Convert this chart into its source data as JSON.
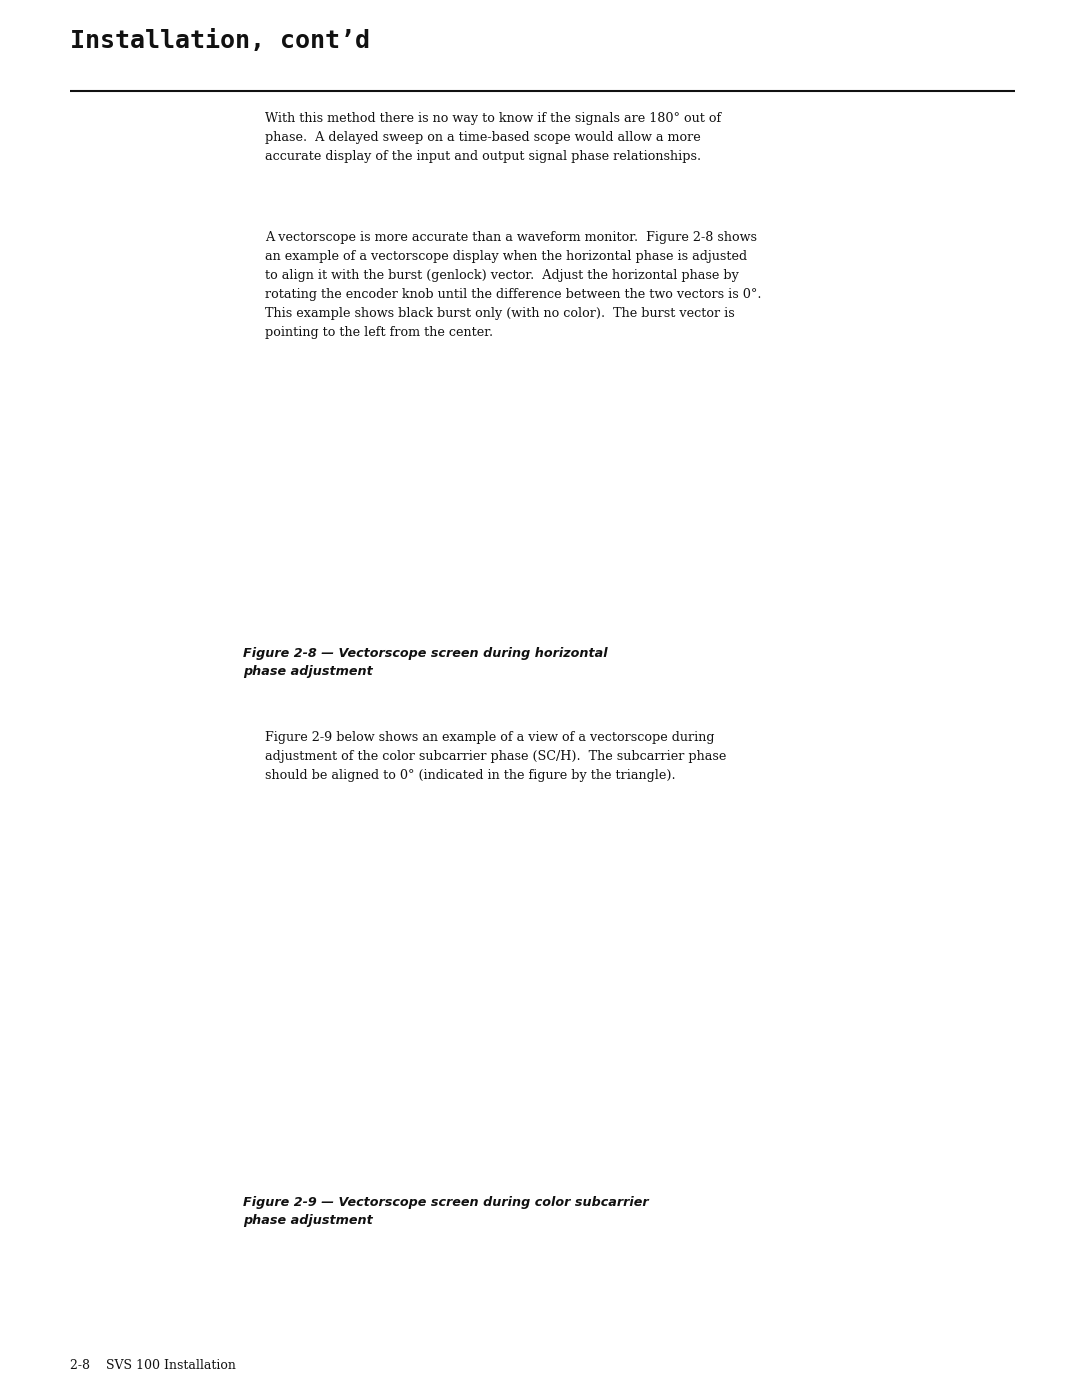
{
  "page_bg": "#ffffff",
  "page_width": 10.8,
  "page_height": 13.97,
  "header_title": "Installation, cont’d",
  "header_title_font": 18,
  "header_title_weight": "bold",
  "header_title_family": "monospace",
  "body_text_1": "With this method there is no way to know if the signals are 180° out of\nphase.  A delayed sweep on a time-based scope would allow a more\naccurate display of the input and output signal phase relationships.",
  "body_text_2": "A vectorscope is more accurate than a waveform monitor.  Figure 2-8 shows\nan example of a vectorscope display when the horizontal phase is adjusted\nto align it with the burst (genlock) vector.  Adjust the horizontal phase by\nrotating the encoder knob until the difference between the two vectors is 0°.\nThis example shows black burst only (with no color).  The burst vector is\npointing to the left from the center.",
  "body_text_3": "Figure 2-9 below shows an example of a view of a vectorscope during\nadjustment of the color subcarrier phase (SC/H).  The subcarrier phase\nshould be aligned to 0° (indicated in the figure by the triangle).",
  "fig1_caption": "Figure 2-8 — Vectorscope screen during horizontal\nphase adjustment",
  "fig2_caption": "Figure 2-9 — Vectorscope screen during color subcarrier\nphase adjustment",
  "footer_text": "2-8    SVS 100 Installation",
  "scope_bg": "#080808",
  "scope_ring_color": "#ffffff",
  "scope_tick_color": "#ffffff",
  "scope_label_color": "#ffffff",
  "scope1_line_color": "#ffffff",
  "scope2_triangle_color": "#ffffff"
}
